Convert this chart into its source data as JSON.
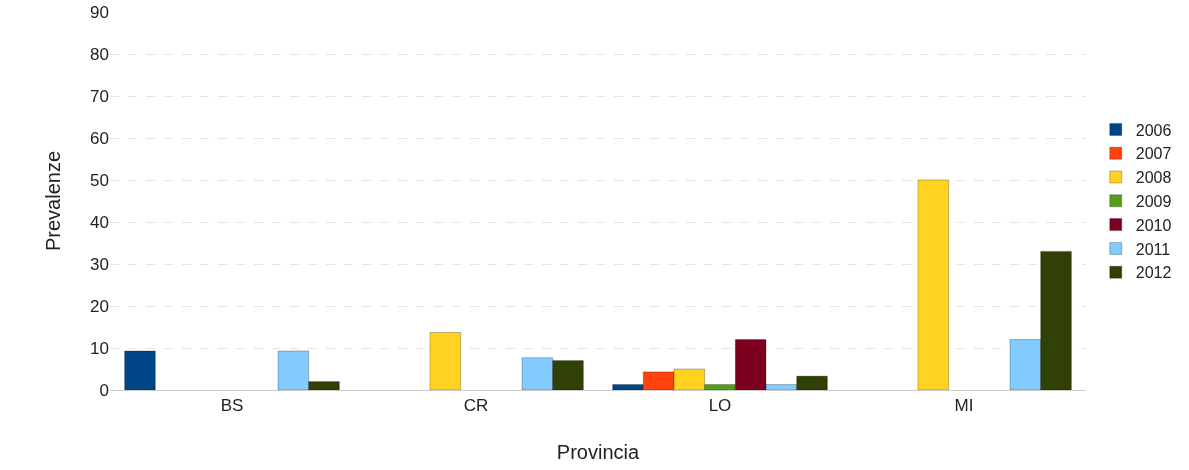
{
  "chart_data": {
    "type": "bar",
    "xlabel": "Provincia",
    "ylabel": "Prevalenze",
    "categories": [
      "BS",
      "CR",
      "LO",
      "MI"
    ],
    "series": [
      {
        "name": "2006",
        "color": "#004586",
        "values": [
          9.3,
          null,
          1.3,
          null
        ]
      },
      {
        "name": "2007",
        "color": "#ff420e",
        "values": [
          null,
          null,
          4.3,
          null
        ]
      },
      {
        "name": "2008",
        "color": "#ffd320",
        "values": [
          null,
          13.7,
          5,
          50
        ]
      },
      {
        "name": "2009",
        "color": "#579d1c",
        "values": [
          null,
          null,
          1.3,
          null
        ]
      },
      {
        "name": "2010",
        "color": "#7e0021",
        "values": [
          null,
          null,
          12,
          null
        ]
      },
      {
        "name": "2011",
        "color": "#83caff",
        "values": [
          9.3,
          7.7,
          1.3,
          12
        ]
      },
      {
        "name": "2012",
        "color": "#314004",
        "values": [
          2,
          7,
          3.3,
          33
        ]
      }
    ],
    "ylim": [
      0,
      90
    ],
    "yticks": [
      0,
      10,
      20,
      30,
      40,
      50,
      60,
      70,
      80,
      90
    ],
    "grid": "y",
    "legend": "right"
  }
}
